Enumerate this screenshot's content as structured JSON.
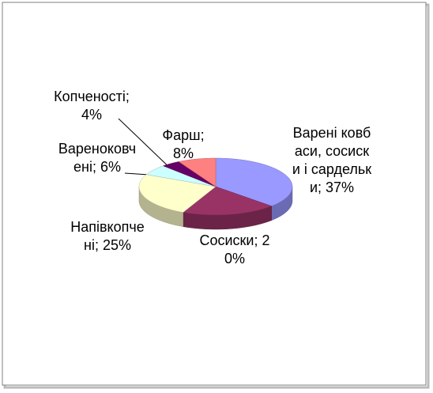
{
  "chart_data": {
    "type": "pie",
    "categories": [
      "Варені ковбаси, сосиски і сардельки",
      "Сосиски",
      "Напівкопчені",
      "Вареноковчені",
      "Копченості",
      "Фарш"
    ],
    "values": [
      37,
      20,
      25,
      6,
      4,
      8
    ],
    "value_labels": [
      "37%",
      "20%",
      "25%",
      "6%",
      "4%",
      "8%"
    ],
    "label_separator": "; ",
    "colors": [
      "#9999ff",
      "#993366",
      "#ffffcc",
      "#ccffff",
      "#660066",
      "#ff8080"
    ]
  }
}
